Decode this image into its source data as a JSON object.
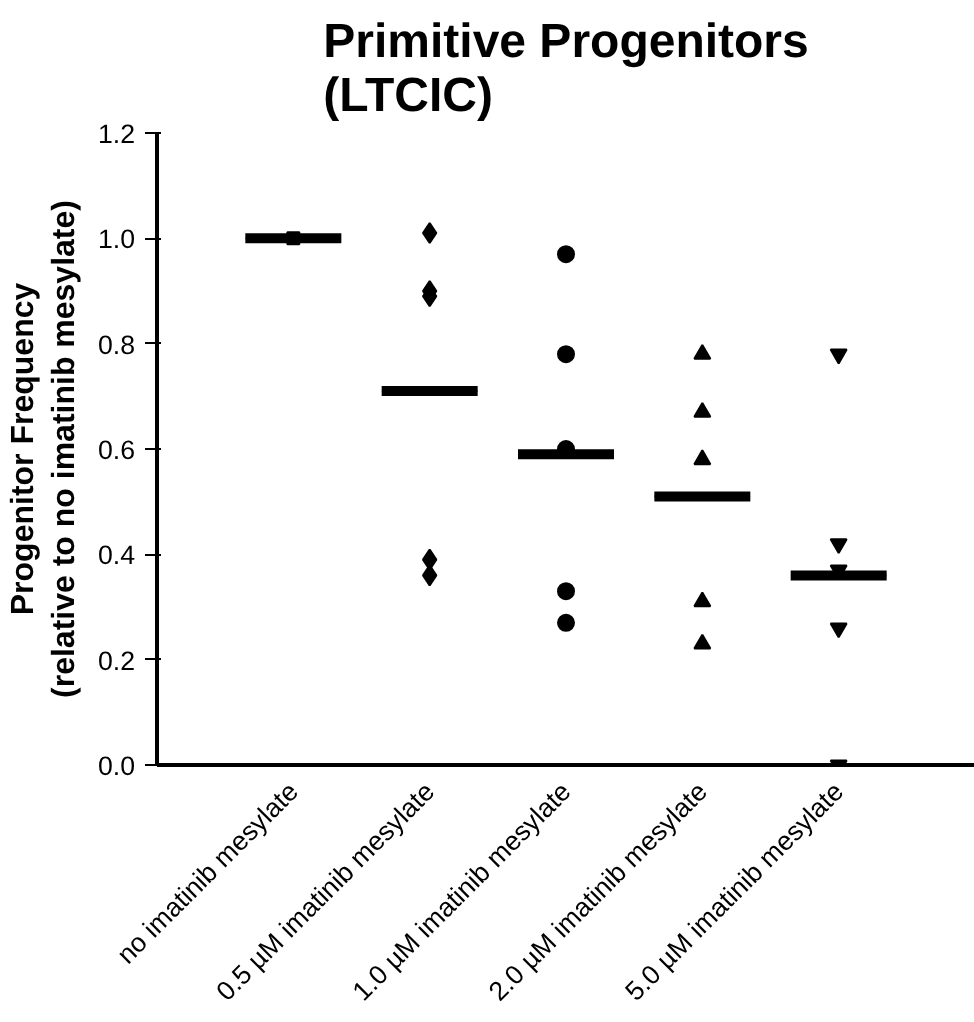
{
  "chart_data": {
    "type": "scatter",
    "title": "Primitive Progenitors\n(LTCIC)",
    "ylabel": "Progenitor Frequency\n(relative to no imatinib mesylate)",
    "categories": [
      "no imatinib mesylate",
      "0.5 µM imatinib mesylate",
      "1.0 µM imatinib mesylate",
      "2.0 µM imatinib mesylate",
      "5.0 µM imatinib mesylate"
    ],
    "ylim": [
      0,
      1.2
    ],
    "yticks": [
      {
        "value": 0,
        "label": "0.0"
      },
      {
        "value": 0.2,
        "label": "0.2"
      },
      {
        "value": 0.4,
        "label": "0.4"
      },
      {
        "value": 0.6,
        "label": "0.6"
      },
      {
        "value": 0.8,
        "label": "0.8"
      },
      {
        "value": 1.0,
        "label": "1.0"
      },
      {
        "value": 1.2,
        "label": "1.2"
      }
    ],
    "grid": false,
    "series": [
      {
        "marker": "square",
        "color": "#000000",
        "x": [
          "no imatinib mesylate"
        ],
        "values": [
          1.0
        ]
      },
      {
        "marker": "diamond",
        "color": "#000000",
        "x": [
          "0.5 µM imatinib mesylate",
          "0.5 µM imatinib mesylate",
          "0.5 µM imatinib mesylate",
          "0.5 µM imatinib mesylate",
          "0.5 µM imatinib mesylate"
        ],
        "values": [
          1.01,
          0.9,
          0.89,
          0.36,
          0.39
        ]
      },
      {
        "marker": "circle",
        "color": "#000000",
        "x": [
          "1.0 µM imatinib mesylate",
          "1.0 µM imatinib mesylate",
          "1.0 µM imatinib mesylate",
          "1.0 µM imatinib mesylate",
          "1.0 µM imatinib mesylate"
        ],
        "values": [
          0.97,
          0.78,
          0.6,
          0.33,
          0.27
        ]
      },
      {
        "marker": "triangle",
        "color": "#000000",
        "x": [
          "2.0 µM imatinib mesylate",
          "2.0 µM imatinib mesylate",
          "2.0 µM imatinib mesylate",
          "2.0 µM imatinib mesylate",
          "2.0 µM imatinib mesylate"
        ],
        "values": [
          0.78,
          0.67,
          0.58,
          0.31,
          0.23
        ]
      },
      {
        "marker": "triangle_down",
        "color": "#000000",
        "x": [
          "5.0 µM imatinib mesylate",
          "5.0 µM imatinib mesylate",
          "5.0 µM imatinib mesylate",
          "5.0 µM imatinib mesylate",
          "5.0 µM imatinib mesylate"
        ],
        "values": [
          0.78,
          0.42,
          0.37,
          0.26,
          0.0
        ]
      },
      {
        "type": "box",
        "color": "#000000",
        "boxes": [
          {
            "low": 1.0,
            "q1": 1.0,
            "median": 1.0,
            "q3": 1.0,
            "high": 1.0
          },
          {
            "low": 0.71,
            "q1": 0.71,
            "median": 0.71,
            "q3": 0.71,
            "high": 0.71
          },
          {
            "low": 0.59,
            "q1": 0.59,
            "median": 0.59,
            "q3": 0.59,
            "high": 0.59
          },
          {
            "low": 0.51,
            "q1": 0.51,
            "median": 0.51,
            "q3": 0.51,
            "high": 0.51
          },
          {
            "low": 0.36,
            "q1": 0.36,
            "median": 0.36,
            "q3": 0.36,
            "high": 0.36
          }
        ]
      }
    ]
  }
}
